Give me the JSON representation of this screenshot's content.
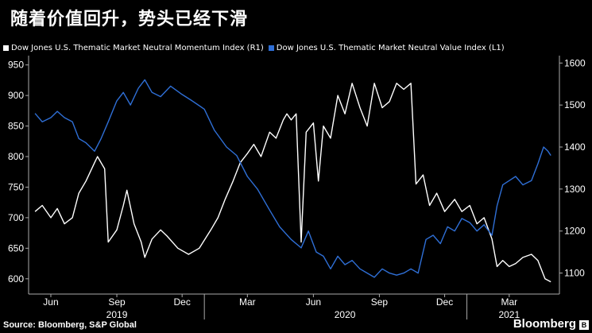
{
  "title": "随着价值回升，势头已经下滑",
  "colors": {
    "background": "#000000",
    "momentum": "#ffffff",
    "value": "#2f6fd6",
    "axis": "#aaaaaa"
  },
  "source": "Source: Bloomberg, S&P Global",
  "brand": "Bloomberg",
  "chart_data": {
    "type": "line",
    "series": [
      {
        "name": "Dow Jones U.S. Thematic Market Neutral Momentum Index (R1)",
        "axis": "left",
        "color": "#ffffff",
        "points": [
          [
            "2019-05-10",
            710
          ],
          [
            "2019-05-20",
            720
          ],
          [
            "2019-06-01",
            700
          ],
          [
            "2019-06-10",
            715
          ],
          [
            "2019-06-20",
            690
          ],
          [
            "2019-07-01",
            700
          ],
          [
            "2019-07-10",
            740
          ],
          [
            "2019-07-20",
            760
          ],
          [
            "2019-08-01",
            790
          ],
          [
            "2019-08-05",
            800
          ],
          [
            "2019-08-15",
            780
          ],
          [
            "2019-08-20",
            660
          ],
          [
            "2019-09-01",
            680
          ],
          [
            "2019-09-10",
            720
          ],
          [
            "2019-09-15",
            745
          ],
          [
            "2019-09-25",
            690
          ],
          [
            "2019-10-05",
            660
          ],
          [
            "2019-10-10",
            635
          ],
          [
            "2019-10-20",
            665
          ],
          [
            "2019-11-01",
            680
          ],
          [
            "2019-11-10",
            670
          ],
          [
            "2019-11-25",
            650
          ],
          [
            "2019-12-10",
            640
          ],
          [
            "2019-12-25",
            650
          ],
          [
            "2020-01-10",
            680
          ],
          [
            "2020-01-20",
            700
          ],
          [
            "2020-01-30",
            730
          ],
          [
            "2020-02-10",
            760
          ],
          [
            "2020-02-20",
            790
          ],
          [
            "2020-03-01",
            805
          ],
          [
            "2020-03-10",
            820
          ],
          [
            "2020-03-20",
            800
          ],
          [
            "2020-04-01",
            840
          ],
          [
            "2020-04-10",
            830
          ],
          [
            "2020-04-20",
            860
          ],
          [
            "2020-04-25",
            870
          ],
          [
            "2020-05-01",
            860
          ],
          [
            "2020-05-08",
            870
          ],
          [
            "2020-05-15",
            660
          ],
          [
            "2020-05-22",
            840
          ],
          [
            "2020-06-01",
            855
          ],
          [
            "2020-06-08",
            760
          ],
          [
            "2020-06-15",
            850
          ],
          [
            "2020-06-25",
            830
          ],
          [
            "2020-07-05",
            900
          ],
          [
            "2020-07-15",
            870
          ],
          [
            "2020-07-25",
            920
          ],
          [
            "2020-08-05",
            880
          ],
          [
            "2020-08-15",
            850
          ],
          [
            "2020-08-25",
            920
          ],
          [
            "2020-09-05",
            880
          ],
          [
            "2020-09-15",
            890
          ],
          [
            "2020-09-25",
            920
          ],
          [
            "2020-10-05",
            910
          ],
          [
            "2020-10-15",
            920
          ],
          [
            "2020-10-22",
            755
          ],
          [
            "2020-11-01",
            770
          ],
          [
            "2020-11-10",
            720
          ],
          [
            "2020-11-20",
            740
          ],
          [
            "2020-12-01",
            710
          ],
          [
            "2020-12-15",
            730
          ],
          [
            "2020-12-25",
            710
          ],
          [
            "2021-01-05",
            720
          ],
          [
            "2021-01-15",
            690
          ],
          [
            "2021-01-25",
            700
          ],
          [
            "2021-02-05",
            665
          ],
          [
            "2021-02-12",
            620
          ],
          [
            "2021-02-20",
            630
          ],
          [
            "2021-03-01",
            620
          ],
          [
            "2021-03-10",
            625
          ],
          [
            "2021-03-20",
            635
          ],
          [
            "2021-04-01",
            640
          ],
          [
            "2021-04-10",
            630
          ],
          [
            "2021-04-20",
            600
          ],
          [
            "2021-04-28",
            595
          ]
        ]
      },
      {
        "name": "Dow Jones U.S. Thematic Market Neutral Value Index (L1)",
        "axis": "right",
        "color": "#2f6fd6",
        "points": [
          [
            "2019-05-10",
            1480
          ],
          [
            "2019-05-20",
            1460
          ],
          [
            "2019-06-01",
            1470
          ],
          [
            "2019-06-10",
            1485
          ],
          [
            "2019-06-20",
            1470
          ],
          [
            "2019-07-01",
            1460
          ],
          [
            "2019-07-10",
            1420
          ],
          [
            "2019-07-20",
            1410
          ],
          [
            "2019-08-01",
            1390
          ],
          [
            "2019-08-10",
            1420
          ],
          [
            "2019-08-20",
            1460
          ],
          [
            "2019-09-01",
            1510
          ],
          [
            "2019-09-10",
            1530
          ],
          [
            "2019-09-20",
            1500
          ],
          [
            "2019-10-01",
            1540
          ],
          [
            "2019-10-10",
            1560
          ],
          [
            "2019-10-20",
            1530
          ],
          [
            "2019-11-01",
            1520
          ],
          [
            "2019-11-15",
            1545
          ],
          [
            "2019-12-01",
            1525
          ],
          [
            "2019-12-15",
            1510
          ],
          [
            "2020-01-01",
            1490
          ],
          [
            "2020-01-15",
            1440
          ],
          [
            "2020-02-01",
            1400
          ],
          [
            "2020-02-15",
            1380
          ],
          [
            "2020-03-01",
            1330
          ],
          [
            "2020-03-15",
            1300
          ],
          [
            "2020-04-01",
            1250
          ],
          [
            "2020-04-15",
            1210
          ],
          [
            "2020-05-01",
            1180
          ],
          [
            "2020-05-15",
            1160
          ],
          [
            "2020-05-25",
            1200
          ],
          [
            "2020-06-05",
            1150
          ],
          [
            "2020-06-15",
            1140
          ],
          [
            "2020-06-25",
            1110
          ],
          [
            "2020-07-05",
            1140
          ],
          [
            "2020-07-15",
            1120
          ],
          [
            "2020-07-25",
            1130
          ],
          [
            "2020-08-05",
            1110
          ],
          [
            "2020-08-15",
            1100
          ],
          [
            "2020-08-25",
            1090
          ],
          [
            "2020-09-05",
            1110
          ],
          [
            "2020-09-15",
            1100
          ],
          [
            "2020-09-25",
            1095
          ],
          [
            "2020-10-05",
            1100
          ],
          [
            "2020-10-15",
            1110
          ],
          [
            "2020-10-25",
            1100
          ],
          [
            "2020-11-05",
            1180
          ],
          [
            "2020-11-15",
            1190
          ],
          [
            "2020-11-25",
            1170
          ],
          [
            "2020-12-05",
            1210
          ],
          [
            "2020-12-15",
            1200
          ],
          [
            "2020-12-25",
            1230
          ],
          [
            "2021-01-05",
            1220
          ],
          [
            "2021-01-15",
            1200
          ],
          [
            "2021-01-25",
            1215
          ],
          [
            "2021-02-05",
            1190
          ],
          [
            "2021-02-12",
            1260
          ],
          [
            "2021-02-20",
            1310
          ],
          [
            "2021-03-01",
            1320
          ],
          [
            "2021-03-10",
            1330
          ],
          [
            "2021-03-20",
            1310
          ],
          [
            "2021-04-01",
            1320
          ],
          [
            "2021-04-10",
            1360
          ],
          [
            "2021-04-18",
            1400
          ],
          [
            "2021-04-24",
            1390
          ],
          [
            "2021-04-28",
            1380
          ]
        ]
      }
    ],
    "y_left": {
      "min": 575,
      "max": 960,
      "ticks": [
        600,
        650,
        700,
        750,
        800,
        850,
        900,
        950
      ]
    },
    "y_right": {
      "min": 1050,
      "max": 1610,
      "ticks": [
        1100,
        1200,
        1300,
        1400,
        1500,
        1600
      ]
    },
    "x_range": [
      "2019-05-01",
      "2021-05-10"
    ],
    "x_ticks": [
      {
        "date": "2019-06-01",
        "label": "Jun"
      },
      {
        "date": "2019-09-01",
        "label": "Sep"
      },
      {
        "date": "2019-12-01",
        "label": "Dec"
      },
      {
        "date": "2020-03-01",
        "label": "Mar"
      },
      {
        "date": "2020-06-01",
        "label": "Jun"
      },
      {
        "date": "2020-09-01",
        "label": "Sep"
      },
      {
        "date": "2020-12-01",
        "label": "Dec"
      },
      {
        "date": "2021-03-01",
        "label": "Mar"
      }
    ],
    "year_labels": [
      {
        "date": "2019-09-01",
        "label": "2019"
      },
      {
        "date": "2020-07-15",
        "label": "2020"
      },
      {
        "date": "2021-03-01",
        "label": "2021"
      }
    ],
    "year_dividers": [
      "2020-01-01",
      "2021-01-01"
    ],
    "grid": false,
    "legend_position": "top-left"
  }
}
